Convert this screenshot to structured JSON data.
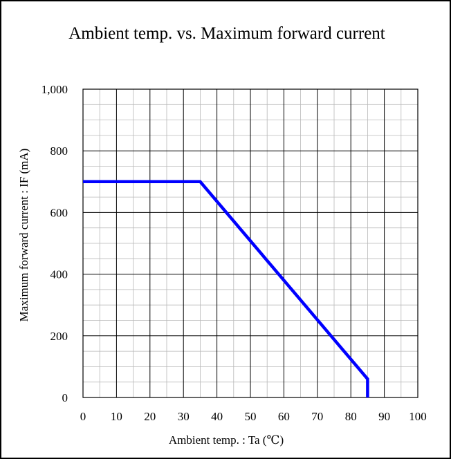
{
  "chart_data": {
    "type": "line",
    "title": "Ambient temp. vs.  Maximum forward current",
    "xlabel": "Ambient temp. : Ta (℃)",
    "ylabel": "Maximum forward current : IF (mA)",
    "xlim": [
      0,
      100
    ],
    "ylim": [
      0,
      1000
    ],
    "x_ticks": [
      0,
      10,
      20,
      30,
      40,
      50,
      60,
      70,
      80,
      90,
      100
    ],
    "x_tick_labels": [
      "0",
      "10",
      "20",
      "30",
      "40",
      "50",
      "60",
      "70",
      "80",
      "90",
      "100"
    ],
    "y_ticks": [
      0,
      200,
      400,
      600,
      800,
      1000
    ],
    "y_tick_labels": [
      "0",
      "200",
      "400",
      "600",
      "800",
      "1,000"
    ],
    "x_minor_step": 5,
    "y_minor_step": 50,
    "grid": true,
    "series": [
      {
        "color": "#0000ff",
        "x": [
          0,
          35,
          85,
          85
        ],
        "y": [
          700,
          700,
          60,
          0
        ]
      }
    ]
  }
}
